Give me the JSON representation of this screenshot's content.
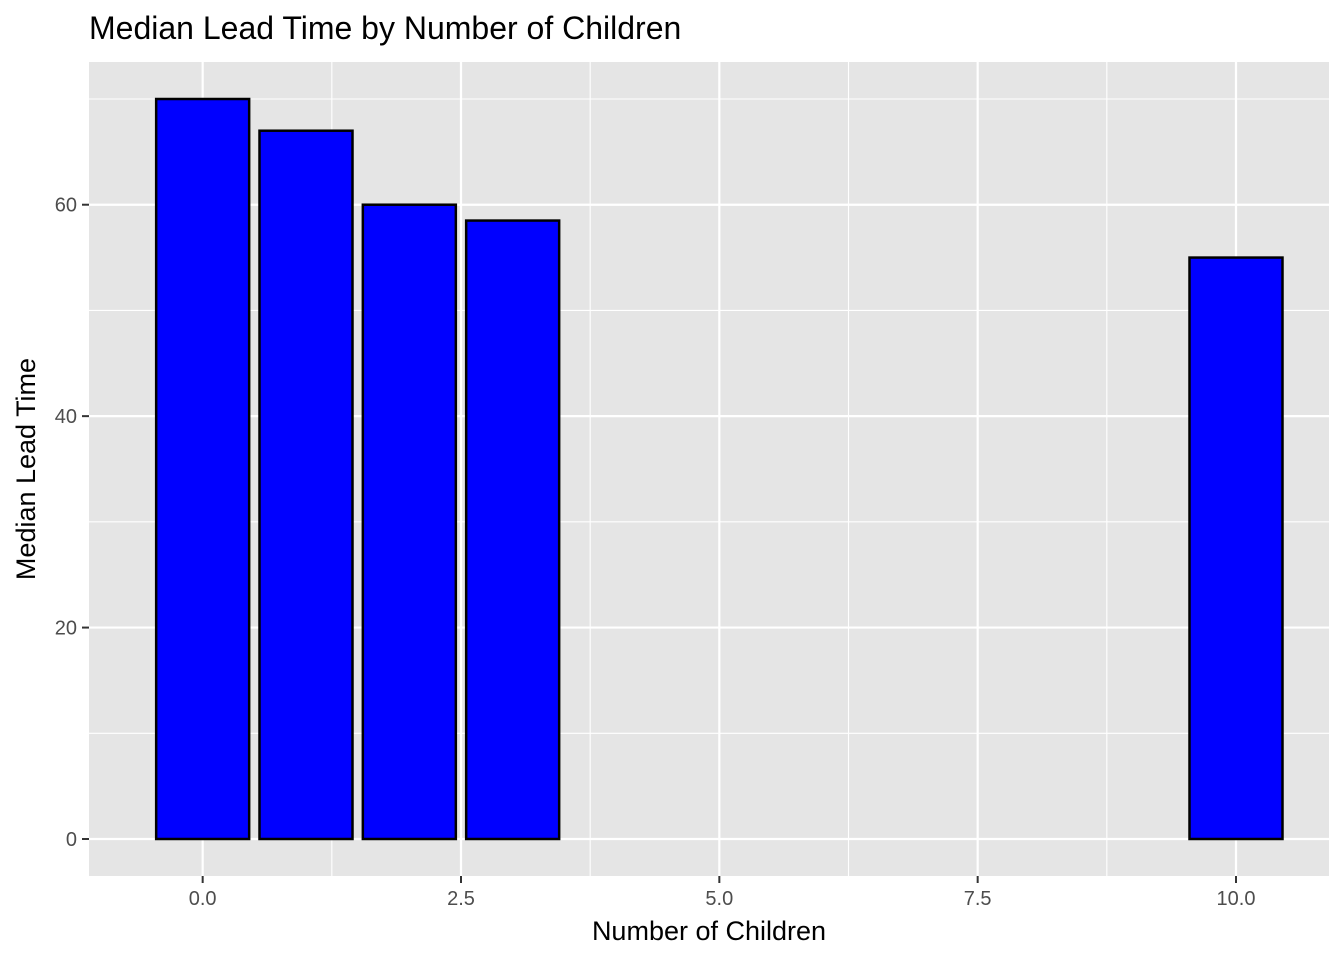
{
  "chart_data": {
    "type": "bar",
    "title": "Median Lead Time by Number of Children",
    "xlabel": "Number of Children",
    "ylabel": "Median Lead Time",
    "x": [
      0,
      1,
      2,
      3,
      10
    ],
    "values": [
      70,
      67,
      60,
      58.5,
      55
    ],
    "xlim": [
      -1.1,
      10.9
    ],
    "ylim": [
      -3.5,
      73.5
    ],
    "x_ticks": [
      "0.0",
      "2.5",
      "5.0",
      "7.5",
      "10.0"
    ],
    "y_ticks": [
      "0",
      "20",
      "40",
      "60"
    ],
    "grid": true,
    "colors": {
      "panel_background": "#e5e5e5",
      "grid_line": "#ffffff",
      "bar_fill": "#0000ff",
      "bar_outline": "#000000",
      "tick_text": "#4d4d4d"
    }
  }
}
